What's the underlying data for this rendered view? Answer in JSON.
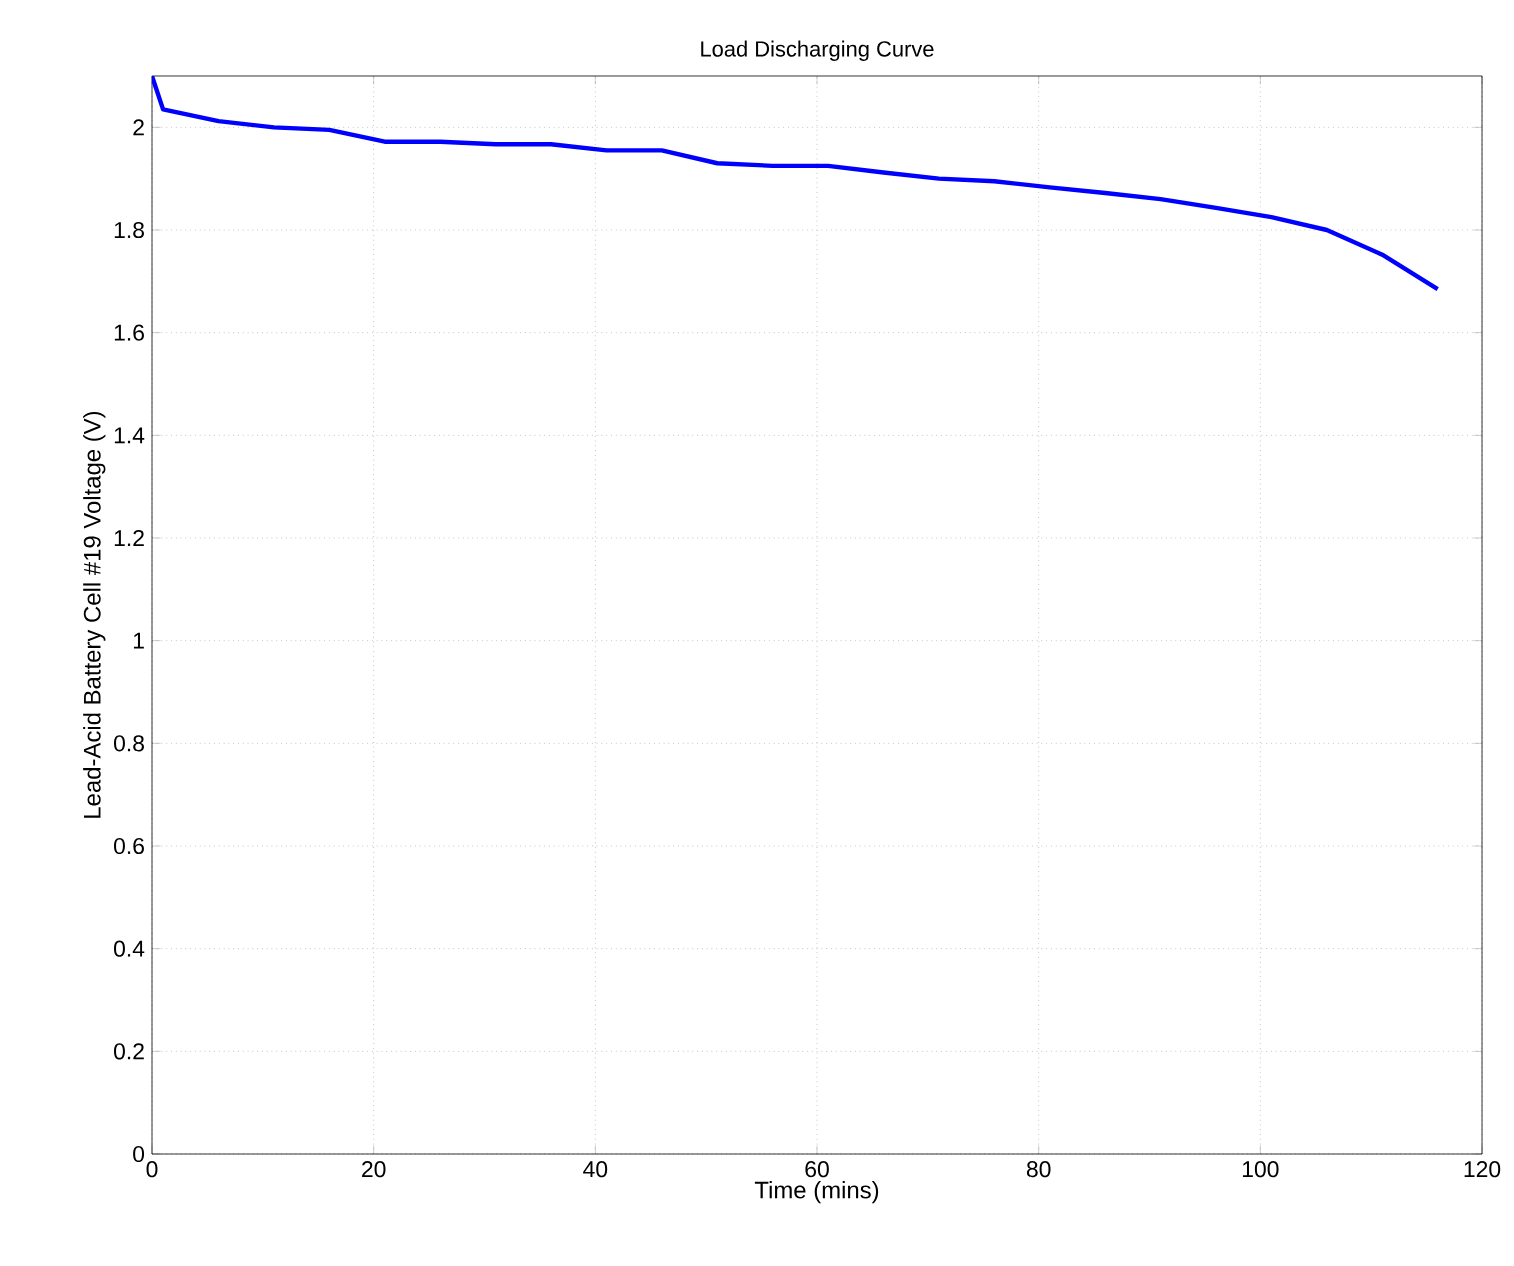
{
  "chart_data": {
    "type": "line",
    "title": "Load Discharging Curve",
    "xlabel": "Time (mins)",
    "ylabel": "Lead-Acid Battery Cell #19 Voltage (V)",
    "x": [
      0,
      1,
      6,
      11,
      16,
      21,
      26,
      31,
      36,
      41,
      46,
      51,
      56,
      61,
      66,
      71,
      76,
      81,
      86,
      91,
      96,
      101,
      106,
      111,
      116
    ],
    "series": [
      {
        "color": "#0000ff",
        "values": [
          2.1,
          2.035,
          2.012,
          2.0,
          1.995,
          1.972,
          1.972,
          1.967,
          1.967,
          1.955,
          1.955,
          1.93,
          1.925,
          1.925,
          1.912,
          1.9,
          1.895,
          1.883,
          1.872,
          1.86,
          1.843,
          1.825,
          1.8,
          1.752,
          1.685
        ]
      }
    ],
    "xlim": [
      0,
      120
    ],
    "ylim": [
      0,
      2.1
    ],
    "xticks": [
      0,
      20,
      40,
      60,
      80,
      100,
      120
    ],
    "yticks": [
      0,
      0.2,
      0.4,
      0.6,
      0.8,
      1,
      1.2,
      1.4,
      1.6,
      1.8,
      2
    ],
    "grid": true,
    "line_style": "solid",
    "marker": "none"
  }
}
